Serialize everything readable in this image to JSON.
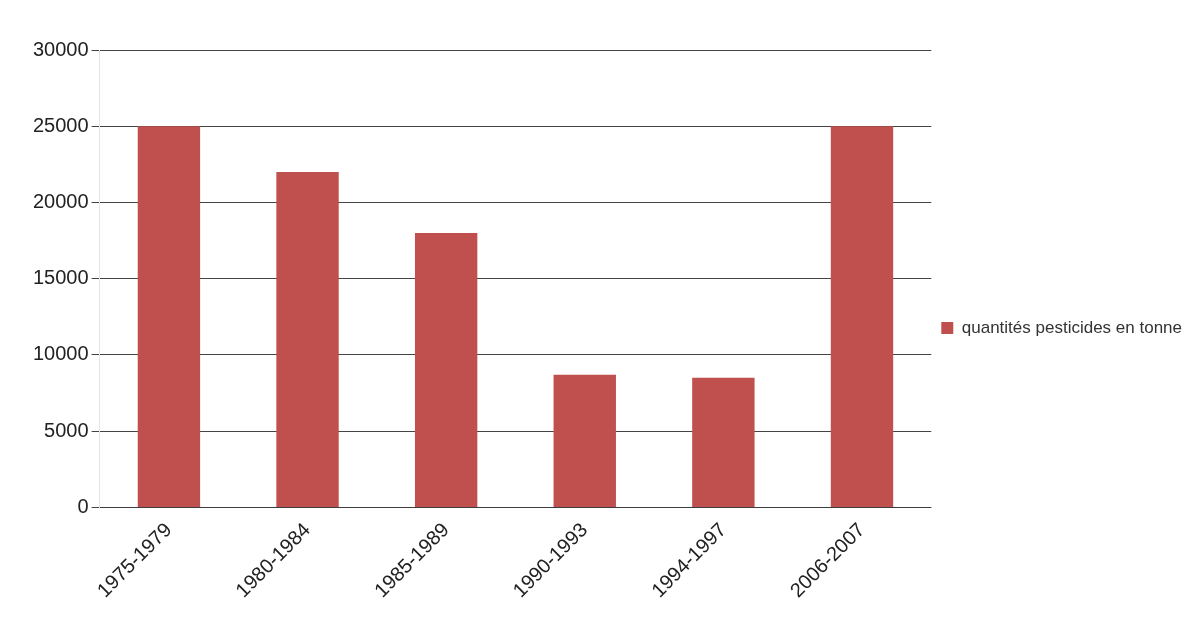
{
  "chart_data": {
    "type": "bar",
    "categories": [
      "1975-1979",
      "1980-1984",
      "1985-1989",
      "1990-1993",
      "1994-1997",
      "2006-2007"
    ],
    "series": [
      {
        "name": "quantités pesticides en tonne",
        "color": "#c0504d",
        "values": [
          25000,
          22000,
          18000,
          8700,
          8500,
          25000
        ]
      }
    ],
    "ylim": [
      0,
      30000
    ],
    "yticks": [
      0,
      5000,
      10000,
      15000,
      20000,
      25000,
      30000
    ],
    "grid": "y",
    "legend": "right"
  }
}
